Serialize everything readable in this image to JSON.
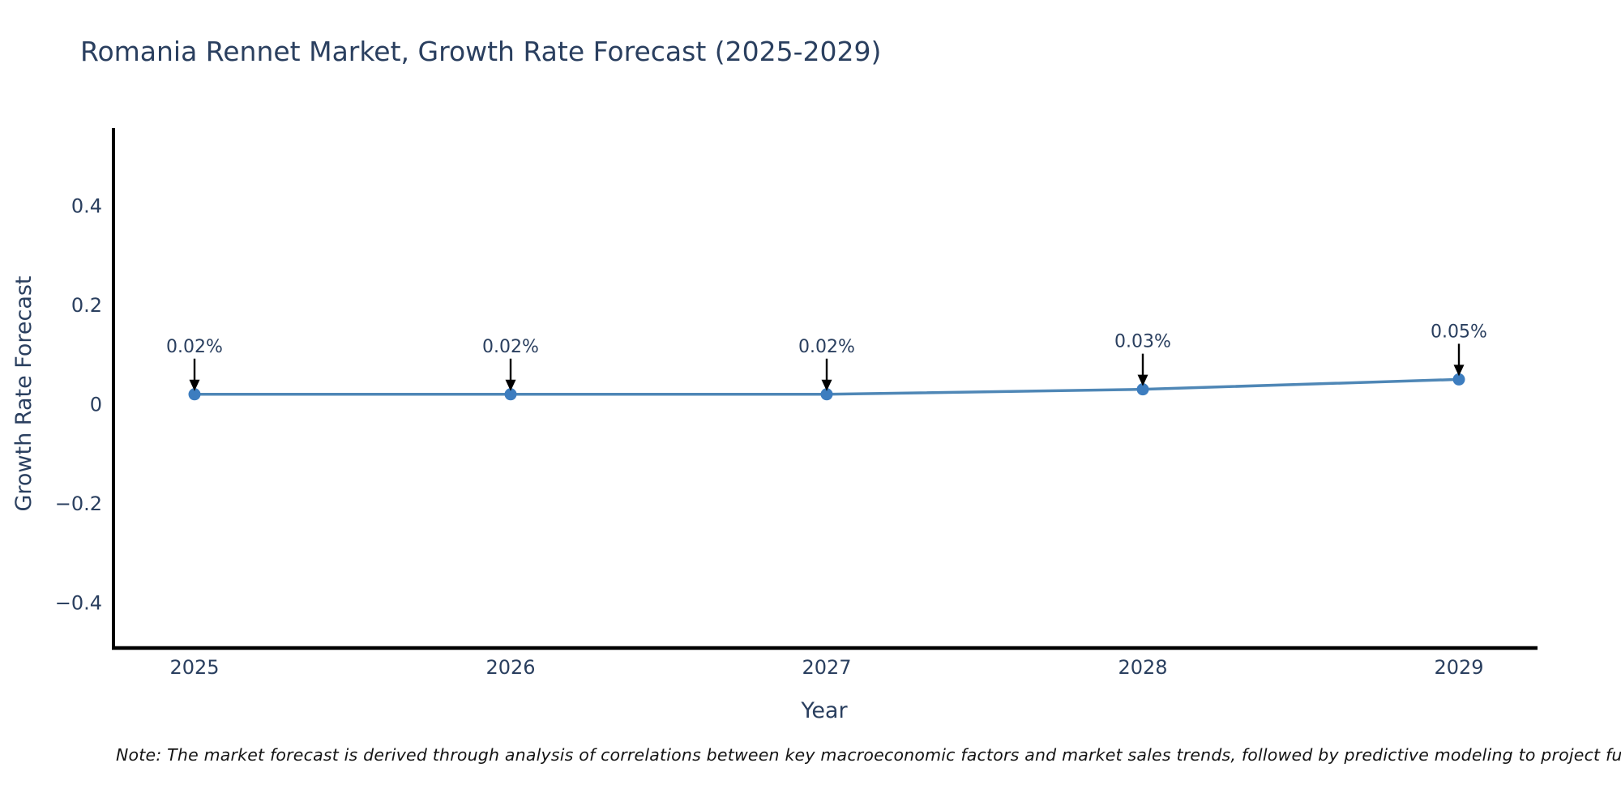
{
  "title_block": {
    "title": "Romania Rennet Market, Growth Rate Forecast (2025-2029)"
  },
  "note": "Note: The market forecast is derived through analysis of correlations between key macroeconomic factors and market sales trends, followed by predictive modeling to project future sa",
  "chart_data": {
    "type": "line",
    "title": "Romania Rennet Market, Growth Rate Forecast (2025-2029)",
    "xlabel": "Year",
    "ylabel": "Growth Rate Forecast",
    "categories": [
      "2025",
      "2026",
      "2027",
      "2028",
      "2029"
    ],
    "series": [
      {
        "name": "Growth Rate Forecast",
        "values": [
          0.02,
          0.02,
          0.02,
          0.03,
          0.05
        ]
      }
    ],
    "point_labels": [
      "0.02%",
      "0.02%",
      "0.02%",
      "0.03%",
      "0.05%"
    ],
    "ytick_values": [
      0.4,
      0.2,
      0,
      -0.2,
      -0.4
    ],
    "ytick_labels": [
      "0.4",
      "0.2",
      "0",
      "−0.2",
      "−0.4"
    ],
    "ylim": [
      -0.5,
      0.55
    ],
    "grid": false,
    "legend_position": "none",
    "annotation_style": "down-arrow",
    "colors": {
      "line": "#4f87b6",
      "marker": "#3d7dbf",
      "arrow": "#000000",
      "spine": "#000000",
      "text": "#2a3f5f",
      "note_text": "#141414",
      "background": "#ffffff"
    }
  }
}
